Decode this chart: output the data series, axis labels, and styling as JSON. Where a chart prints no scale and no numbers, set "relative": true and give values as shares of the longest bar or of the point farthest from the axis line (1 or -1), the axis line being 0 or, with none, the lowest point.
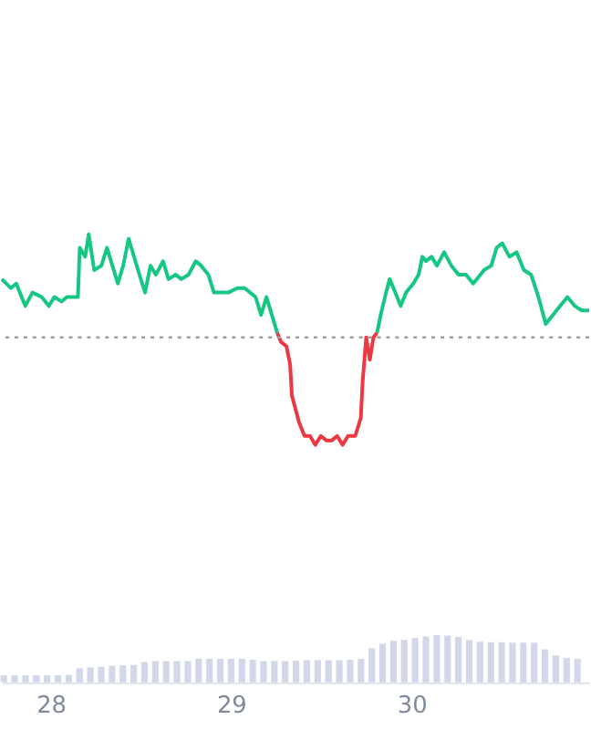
{
  "chart_data": {
    "type": "line",
    "relative": true,
    "line_style": "solid",
    "marker": "none",
    "xlim": [
      27.729,
      30.985
    ],
    "xticks": [
      28,
      29,
      30
    ],
    "x": [
      27.729,
      27.779,
      27.809,
      27.859,
      27.899,
      27.95,
      27.99,
      28.02,
      28.06,
      28.09,
      28.131,
      28.151,
      28.161,
      28.191,
      28.211,
      28.241,
      28.281,
      28.312,
      28.342,
      28.372,
      28.402,
      28.432,
      28.462,
      28.492,
      28.523,
      28.553,
      28.583,
      28.623,
      28.653,
      28.693,
      28.724,
      28.764,
      28.804,
      28.834,
      28.874,
      28.905,
      28.935,
      28.985,
      29.035,
      29.075,
      29.136,
      29.166,
      29.196,
      29.226,
      29.256,
      29.276,
      29.307,
      29.327,
      29.337,
      29.357,
      29.377,
      29.407,
      29.437,
      29.467,
      29.497,
      29.528,
      29.558,
      29.588,
      29.618,
      29.648,
      29.688,
      29.719,
      29.729,
      29.749,
      29.769,
      29.789,
      29.809,
      29.829,
      29.859,
      29.879,
      29.91,
      29.94,
      29.97,
      30.01,
      30.04,
      30.06,
      30.08,
      30.111,
      30.141,
      30.181,
      30.221,
      30.261,
      30.302,
      30.342,
      30.382,
      30.402,
      30.442,
      30.472,
      30.503,
      30.543,
      30.583,
      30.623,
      30.663,
      30.704,
      30.744,
      30.784,
      30.824,
      30.864,
      30.905,
      30.945,
      30.985
    ],
    "series": [
      {
        "type": "bar",
        "axis": "y2",
        "color": "#d3d7ea",
        "x": [
          27.74,
          27.8,
          27.86,
          27.92,
          27.98,
          28.04,
          28.1,
          28.16,
          28.22,
          28.28,
          28.34,
          28.4,
          28.46,
          28.52,
          28.58,
          28.64,
          28.7,
          28.76,
          28.82,
          28.88,
          28.94,
          29.0,
          29.06,
          29.12,
          29.18,
          29.24,
          29.3,
          29.36,
          29.42,
          29.48,
          29.54,
          29.6,
          29.66,
          29.72,
          29.78,
          29.84,
          29.9,
          29.96,
          30.02,
          30.08,
          30.14,
          30.2,
          30.26,
          30.32,
          30.38,
          30.44,
          30.5,
          30.56,
          30.62,
          30.68,
          30.74,
          30.8,
          30.86,
          30.92
        ],
        "values": [
          0.15,
          0.15,
          0.15,
          0.15,
          0.15,
          0.15,
          0.16,
          0.3,
          0.32,
          0.33,
          0.35,
          0.36,
          0.37,
          0.43,
          0.45,
          0.45,
          0.45,
          0.45,
          0.5,
          0.5,
          0.5,
          0.5,
          0.5,
          0.48,
          0.45,
          0.45,
          0.45,
          0.46,
          0.47,
          0.47,
          0.47,
          0.47,
          0.48,
          0.5,
          0.72,
          0.82,
          0.88,
          0.9,
          0.94,
          0.97,
          1.0,
          0.99,
          0.96,
          0.9,
          0.86,
          0.85,
          0.85,
          0.84,
          0.84,
          0.84,
          0.7,
          0.57,
          0.52,
          0.5
        ]
      },
      {
        "color": "#16c784",
        "values": [
          0.9,
          0.88,
          0.89,
          0.84,
          0.87,
          0.86,
          0.84,
          0.86,
          0.85,
          0.86,
          0.86,
          0.86,
          0.97,
          0.95,
          1.0,
          0.92,
          0.93,
          0.97,
          0.93,
          0.89,
          0.93,
          0.99,
          0.95,
          0.91,
          0.87,
          0.93,
          0.91,
          0.94,
          0.9,
          0.91,
          0.9,
          0.91,
          0.94,
          0.93,
          0.91,
          0.87,
          0.87,
          0.87,
          0.88,
          0.88,
          0.86,
          0.82,
          0.86,
          0.82,
          0.78,
          null,
          null,
          null,
          null,
          null,
          null,
          null,
          null,
          null,
          null,
          null,
          null,
          null,
          null,
          null,
          null,
          null,
          null,
          null,
          null,
          null,
          0.78,
          0.82,
          0.87,
          0.9,
          0.87,
          0.84,
          0.87,
          0.89,
          0.91,
          0.95,
          0.94,
          0.95,
          0.93,
          0.96,
          0.93,
          0.91,
          0.91,
          0.89,
          0.91,
          0.92,
          0.93,
          0.97,
          0.98,
          0.95,
          0.96,
          0.92,
          0.91,
          0.86,
          0.8,
          0.82,
          0.84,
          0.86,
          0.84,
          0.83,
          0.83
        ]
      },
      {
        "color": "#ea3943",
        "values": [
          null,
          null,
          null,
          null,
          null,
          null,
          null,
          null,
          null,
          null,
          null,
          null,
          null,
          null,
          null,
          null,
          null,
          null,
          null,
          null,
          null,
          null,
          null,
          null,
          null,
          null,
          null,
          null,
          null,
          null,
          null,
          null,
          null,
          null,
          null,
          null,
          null,
          null,
          null,
          null,
          null,
          null,
          null,
          null,
          0.78,
          0.76,
          0.75,
          0.71,
          0.64,
          0.61,
          0.58,
          0.55,
          0.55,
          0.53,
          0.55,
          0.54,
          0.54,
          0.55,
          0.53,
          0.55,
          0.55,
          0.59,
          0.67,
          0.77,
          0.72,
          0.77,
          0.78,
          null,
          null,
          null,
          null,
          null,
          null,
          null,
          null,
          null,
          null,
          null,
          null,
          null,
          null,
          null,
          null,
          null,
          null,
          null,
          null,
          null,
          null,
          null,
          null,
          null,
          null,
          null,
          null,
          null,
          null,
          null,
          null,
          null,
          null
        ]
      }
    ],
    "ref_lines": [
      {
        "axis": "y",
        "value": 0.77,
        "color": "#9e9e9e",
        "line_style": "dotted"
      }
    ]
  }
}
